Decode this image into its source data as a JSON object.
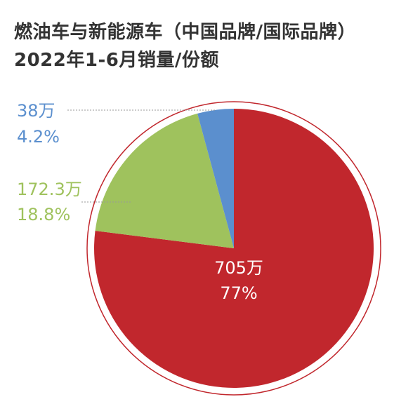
{
  "title_lines": [
    "燃油车与新能源车（中国品牌/国际品牌）",
    "2022年1-6月销量/份额"
  ],
  "chart_data": {
    "type": "pie",
    "title": "燃油车与新能源车（中国品牌/国际品牌）2022年1-6月销量/份额",
    "slices": [
      {
        "value_label": "705万",
        "share_label": "77%",
        "value": 705,
        "share": 77.0,
        "color": "#c1272d"
      },
      {
        "value_label": "172.3万",
        "share_label": "18.8%",
        "value": 172.3,
        "share": 18.8,
        "color": "#9fc25d"
      },
      {
        "value_label": "38万",
        "share_label": "4.2%",
        "value": 38,
        "share": 4.2,
        "color": "#5b8fce"
      }
    ],
    "unit": "万",
    "outline_color": "#c1272d",
    "legend": "none"
  }
}
